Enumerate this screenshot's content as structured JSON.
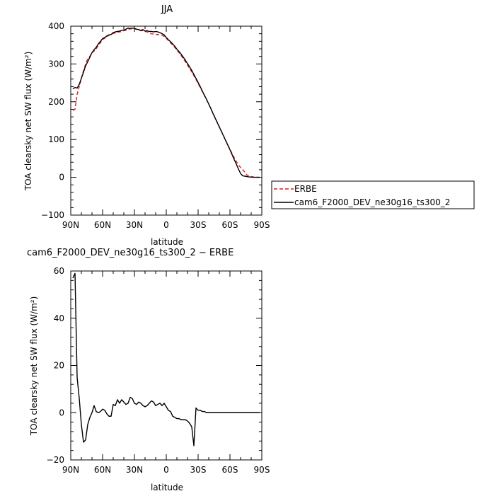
{
  "chart_data": [
    {
      "type": "line",
      "title": "JJA",
      "xlabel": "latitude",
      "ylabel": "TOA clearsky net SW flux (W/m²)",
      "xlim": [
        90,
        -90
      ],
      "ylim": [
        -100,
        400
      ],
      "x_ticks": [
        90,
        60,
        30,
        0,
        -30,
        -60,
        -90
      ],
      "x_tick_labels": [
        "90N",
        "60N",
        "30N",
        "0",
        "30S",
        "60S",
        "90S"
      ],
      "y_ticks": [
        -100,
        0,
        100,
        200,
        300,
        400
      ],
      "y_tick_labels": [
        "−100",
        "0",
        "100",
        "200",
        "300",
        "400"
      ],
      "grid": false,
      "legend_position": "right",
      "series": [
        {
          "name": "ERBE",
          "color": "#e0191f",
          "dash": "dashed",
          "x": [
            88,
            86,
            84,
            82,
            80,
            78,
            76,
            74,
            72,
            70,
            68,
            66,
            64,
            62,
            60,
            58,
            56,
            54,
            52,
            50,
            48,
            46,
            44,
            42,
            40,
            38,
            36,
            34,
            32,
            30,
            28,
            26,
            24,
            22,
            20,
            18,
            16,
            14,
            12,
            10,
            8,
            6,
            4,
            2,
            0,
            -2,
            -4,
            -6,
            -8,
            -10,
            -12,
            -14,
            -16,
            -18,
            -20,
            -22,
            -24,
            -26,
            -28,
            -30,
            -32,
            -34,
            -36,
            -38,
            -40,
            -42,
            -44,
            -46,
            -48,
            -50,
            -52,
            -54,
            -56,
            -58,
            -60,
            -62,
            -64,
            -66,
            -68,
            -70,
            -72,
            -74,
            -76,
            -78,
            -80,
            -82,
            -84,
            -86,
            -88
          ],
          "values": [
            177,
            180,
            220,
            240,
            262,
            282,
            300,
            314,
            320,
            330,
            334,
            340,
            350,
            356,
            365,
            368,
            372,
            376,
            378,
            381,
            382,
            384,
            385,
            386,
            388,
            389,
            392,
            393,
            393,
            392,
            392,
            390,
            388,
            388,
            386,
            385,
            382,
            380,
            379,
            378,
            378,
            377,
            376,
            373,
            368,
            362,
            356,
            350,
            344,
            337,
            330,
            322,
            314,
            306,
            297,
            288,
            279,
            269,
            259,
            248,
            238,
            227,
            216,
            205,
            193,
            182,
            170,
            158,
            146,
            134,
            122,
            110,
            98,
            86,
            74,
            63,
            52,
            42,
            33,
            26,
            20,
            14,
            6,
            3,
            2,
            1,
            0.5,
            0.2,
            0
          ],
          "note": "Values read approximately from the figure"
        },
        {
          "name": "cam6_F2000_DEV_ne30g16_ts300_2",
          "color": "#000000",
          "dash": "solid",
          "x": [
            88,
            86,
            84,
            82,
            80,
            78,
            76,
            74,
            72,
            70,
            68,
            66,
            64,
            62,
            60,
            58,
            56,
            54,
            52,
            50,
            48,
            46,
            44,
            42,
            40,
            38,
            36,
            34,
            32,
            30,
            28,
            26,
            24,
            22,
            20,
            18,
            16,
            14,
            12,
            10,
            8,
            6,
            4,
            2,
            0,
            -2,
            -4,
            -6,
            -8,
            -10,
            -12,
            -14,
            -16,
            -18,
            -20,
            -22,
            -24,
            -26,
            -28,
            -30,
            -32,
            -34,
            -36,
            -38,
            -40,
            -42,
            -44,
            -46,
            -48,
            -50,
            -52,
            -54,
            -56,
            -58,
            -60,
            -62,
            -64,
            -66,
            -68,
            -70,
            -72,
            -74,
            -76,
            -78,
            -80,
            -82,
            -84,
            -86,
            -88
          ],
          "values": [
            234,
            238,
            236,
            246,
            262,
            278,
            295,
            306,
            318,
            330,
            338,
            344,
            353,
            360,
            367,
            370,
            374,
            377,
            378,
            383,
            385,
            386,
            387,
            389,
            390,
            392,
            395,
            394,
            395,
            394,
            392,
            391,
            389,
            391,
            387,
            388,
            386,
            386,
            385,
            386,
            385,
            383,
            380,
            377,
            370,
            364,
            359,
            353,
            347,
            339,
            333,
            326,
            318,
            310,
            301,
            292,
            283,
            272,
            262,
            251,
            240,
            228,
            217,
            206,
            194,
            182,
            169,
            157,
            145,
            133,
            121,
            109,
            97,
            85,
            73,
            60,
            47,
            35,
            22,
            10,
            4,
            3,
            2,
            1,
            0.5,
            0.2,
            0.1,
            0,
            0
          ],
          "note": "Values read approximately from the figure"
        }
      ]
    },
    {
      "type": "line",
      "title": "cam6_F2000_DEV_ne30g16_ts300_2 − ERBE",
      "xlabel": "latitude",
      "ylabel": "TOA clearsky net SW flux (W/m²)",
      "xlim": [
        90,
        -90
      ],
      "ylim": [
        -20,
        60
      ],
      "x_ticks": [
        90,
        60,
        30,
        0,
        -30,
        -60,
        -90
      ],
      "x_tick_labels": [
        "90N",
        "60N",
        "30N",
        "0",
        "30S",
        "60S",
        "90S"
      ],
      "y_ticks": [
        -20,
        0,
        20,
        40,
        60
      ],
      "y_tick_labels": [
        "−20",
        "0",
        "20",
        "40",
        "60"
      ],
      "grid": false,
      "series": [
        {
          "color": "#000000",
          "dash": "solid",
          "x": [
            88,
            86,
            84,
            82,
            80,
            78,
            76,
            74,
            72,
            70,
            68,
            66,
            64,
            62,
            60,
            58,
            56,
            54,
            52,
            50,
            48,
            46,
            44,
            42,
            40,
            38,
            36,
            34,
            32,
            30,
            28,
            26,
            24,
            22,
            20,
            18,
            16,
            14,
            12,
            10,
            8,
            6,
            4,
            2,
            0,
            -2,
            -4,
            -6,
            -8,
            -10,
            -12,
            -14,
            -16,
            -18,
            -20,
            -22,
            -24,
            -26,
            -28,
            -30,
            -32,
            -34,
            -36,
            -38,
            -40,
            -42,
            -44,
            -46,
            -48,
            -50,
            -52,
            -54,
            -56,
            -58,
            -60,
            -62,
            -64,
            -66,
            -68,
            -70,
            -72,
            -74,
            -76,
            -78,
            -80,
            -82,
            -84,
            -86,
            -88
          ],
          "values": [
            57,
            59,
            15,
            6,
            -5,
            -12.5,
            -11.5,
            -5,
            -2,
            0,
            3,
            0.5,
            0,
            0.5,
            1.5,
            1,
            -0.5,
            -1.5,
            -1.5,
            3.5,
            3,
            5.5,
            4,
            5.5,
            4.5,
            3.5,
            4,
            6.5,
            6,
            4,
            3.5,
            4.5,
            4,
            3,
            2.5,
            3,
            4,
            5,
            4.5,
            3,
            3.5,
            4,
            3,
            4,
            2.5,
            1,
            0.5,
            -1.5,
            -2,
            -2.5,
            -2.5,
            -3,
            -3,
            -3,
            -3.5,
            -4.5,
            -6,
            -14,
            2,
            1,
            1,
            0.5,
            0.5,
            0,
            0,
            0,
            0,
            0,
            0,
            0,
            0,
            0,
            0,
            0,
            0,
            0,
            0,
            0,
            0,
            0,
            0,
            0,
            0,
            0,
            0,
            0,
            0,
            0,
            0
          ],
          "note": "Values read approximately from the figure"
        }
      ]
    }
  ]
}
